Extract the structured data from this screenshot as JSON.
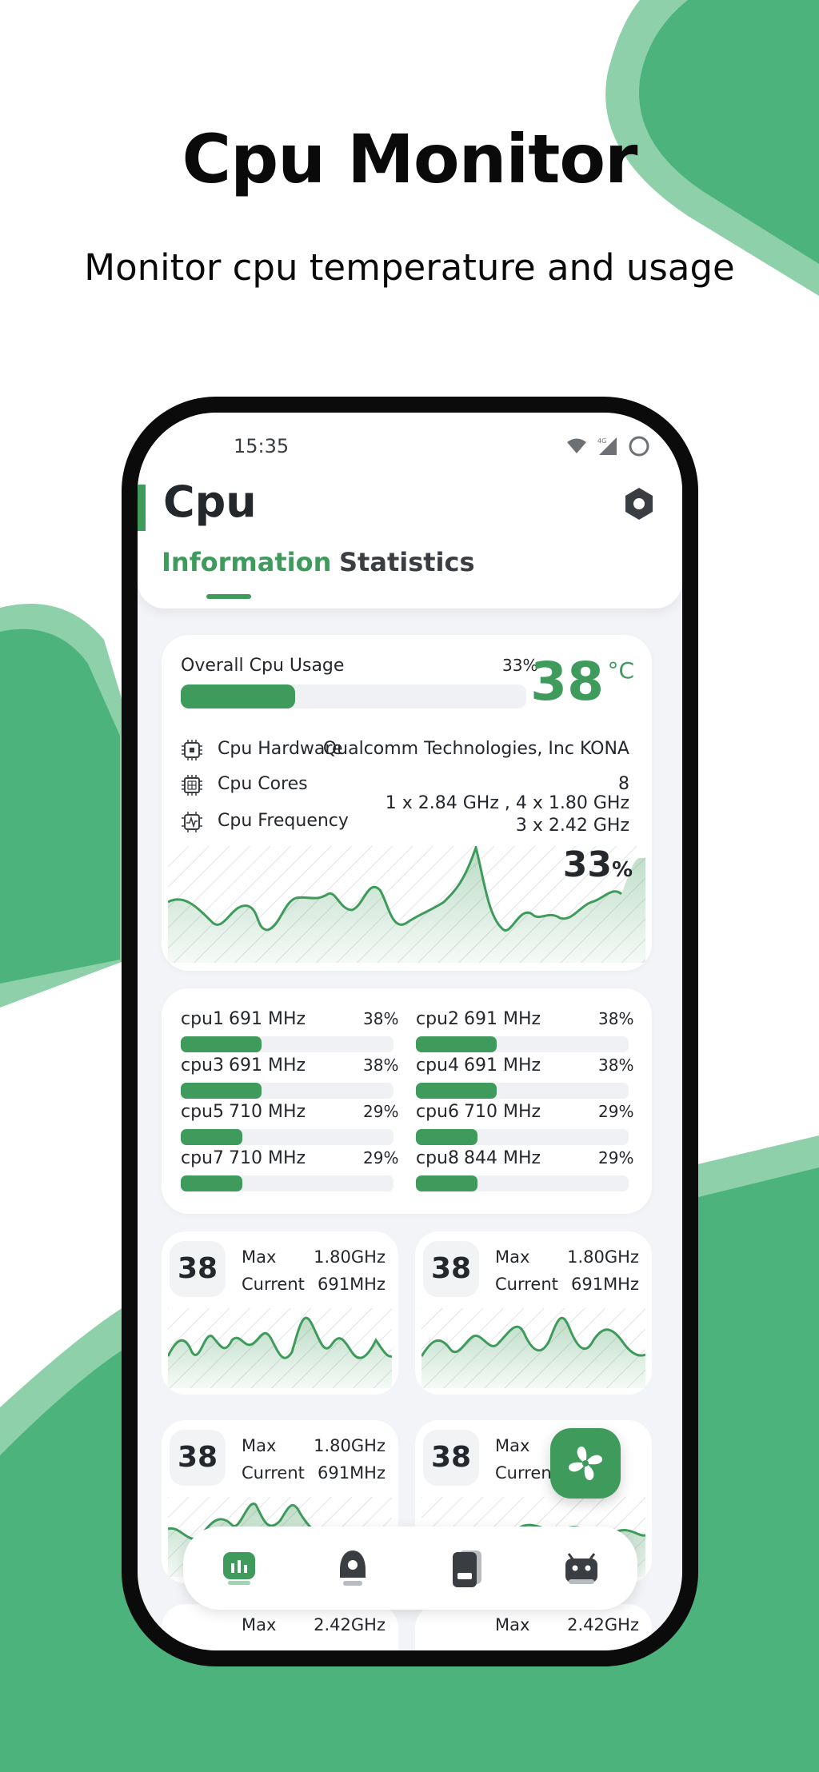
{
  "hero": {
    "title": "Cpu Monitor",
    "subtitle": "Monitor cpu temperature and usage"
  },
  "status_bar": {
    "time": "15:35",
    "network": "4G"
  },
  "app": {
    "title": "Cpu",
    "tabs": [
      {
        "label": "Information",
        "active": true
      },
      {
        "label": "Statistics",
        "active": false
      }
    ]
  },
  "overview": {
    "usage_label": "Overall Cpu Usage",
    "usage_percent": "33%",
    "usage_fraction": 0.33,
    "temperature": "38",
    "temperature_unit": "°C",
    "hardware_label": "Cpu Hardware",
    "hardware_value": "Qualcomm Technologies, Inc KONA",
    "cores_label": "Cpu Cores",
    "cores_value": "8",
    "frequency_label": "Cpu Frequency",
    "frequency_line1": "1 x 2.84 GHz , 4 x 1.80 GHz",
    "frequency_line2": "3 x 2.42 GHz",
    "graph_value": "33",
    "graph_unit": "%"
  },
  "cores": [
    {
      "name": "cpu1",
      "freq": "691 MHz",
      "percent": "38%",
      "fraction": 0.38
    },
    {
      "name": "cpu2",
      "freq": "691 MHz",
      "percent": "38%",
      "fraction": 0.38
    },
    {
      "name": "cpu3",
      "freq": "691 MHz",
      "percent": "38%",
      "fraction": 0.38
    },
    {
      "name": "cpu4",
      "freq": "691 MHz",
      "percent": "38%",
      "fraction": 0.38
    },
    {
      "name": "cpu5",
      "freq": "710 MHz",
      "percent": "29%",
      "fraction": 0.29
    },
    {
      "name": "cpu6",
      "freq": "710 MHz",
      "percent": "29%",
      "fraction": 0.29
    },
    {
      "name": "cpu7",
      "freq": "710 MHz",
      "percent": "29%",
      "fraction": 0.29
    },
    {
      "name": "cpu8",
      "freq": "844 MHz",
      "percent": "29%",
      "fraction": 0.29
    }
  ],
  "core_cards": [
    {
      "value": "38",
      "max_label": "Max",
      "max_value": "1.80GHz",
      "current_label": "Current",
      "current_value": "691MHz"
    },
    {
      "value": "38",
      "max_label": "Max",
      "max_value": "1.80GHz",
      "current_label": "Current",
      "current_value": "691MHz"
    },
    {
      "value": "38",
      "max_label": "Max",
      "max_value": "1.80GHz",
      "current_label": "Current",
      "current_value": "691MHz"
    },
    {
      "value": "38",
      "max_label": "Max",
      "max_value": "",
      "current_label": "Current",
      "current_value": ""
    }
  ],
  "partial_cards": [
    {
      "max_label": "Max",
      "max_value": "2.42GHz"
    },
    {
      "max_label": "Max",
      "max_value": "2.42GHz"
    }
  ],
  "nav": [
    "cpu-chart-icon",
    "gpu-lamp-icon",
    "battery-icon",
    "android-icon"
  ],
  "colors": {
    "accent": "#3f9b5c",
    "bg_green": "#4cb37d",
    "light_green": "#8dd0aa"
  }
}
